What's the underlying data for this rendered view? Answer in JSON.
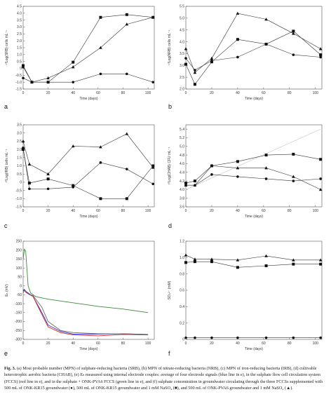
{
  "chart_data": [
    {
      "id": "a",
      "type": "line",
      "panel_label": "a",
      "xlabel": "Time (days)",
      "ylabel": "¹⁰Log(SRB) cells mL⁻¹",
      "xlim": [
        0,
        105
      ],
      "ylim": [
        -1.5,
        4.5
      ],
      "xticks": [
        "0",
        "20",
        "40",
        "60",
        "80",
        "100"
      ],
      "yticks": [
        "-1.5",
        "-1.0",
        "-0.5",
        "0",
        "0.5",
        "1.0",
        "1.5",
        "2.0",
        "2.5",
        "3.0",
        "3.5",
        "4.0",
        "4.5"
      ],
      "series": [
        {
          "marker": "circle",
          "x": [
            0,
            7,
            20,
            40,
            62,
            83,
            104
          ],
          "y": [
            -0.7,
            -1.0,
            -1.0,
            -1.0,
            -0.4,
            -0.4,
            -1.0
          ]
        },
        {
          "marker": "square",
          "x": [
            0,
            7,
            20,
            40,
            62,
            83,
            104
          ],
          "y": [
            0.2,
            -1.0,
            -1.0,
            0.45,
            3.7,
            3.9,
            3.7
          ]
        },
        {
          "marker": "triangle",
          "x": [
            0,
            7,
            20,
            40,
            62,
            83,
            104
          ],
          "y": [
            0.1,
            -1.0,
            -0.7,
            0.1,
            1.5,
            3.2,
            3.7
          ]
        }
      ]
    },
    {
      "id": "b",
      "type": "line",
      "panel_label": "b",
      "xlabel": "Time (days)",
      "ylabel": "¹⁰Log(NRB) cells mL⁻¹",
      "xlim": [
        0,
        105
      ],
      "ylim": [
        2.0,
        5.5
      ],
      "xticks": [
        "0",
        "20",
        "40",
        "60",
        "80",
        "100"
      ],
      "yticks": [
        "2.0",
        "2.5",
        "3.0",
        "3.5",
        "4.0",
        "4.5",
        "5.0",
        "5.5"
      ],
      "series": [
        {
          "marker": "circle",
          "x": [
            0,
            7,
            20,
            40,
            62,
            83,
            104
          ],
          "y": [
            3.3,
            2.8,
            3.2,
            3.35,
            3.9,
            3.45,
            3.35
          ]
        },
        {
          "marker": "square",
          "x": [
            0,
            7,
            20,
            40,
            62,
            83,
            104
          ],
          "y": [
            3.05,
            2.2,
            3.15,
            4.1,
            3.9,
            4.45,
            3.45
          ]
        },
        {
          "marker": "triangle",
          "x": [
            0,
            7,
            20,
            40,
            62,
            83,
            104
          ],
          "y": [
            3.7,
            2.7,
            3.3,
            5.2,
            4.95,
            4.35,
            3.7
          ]
        }
      ]
    },
    {
      "id": "c",
      "type": "line",
      "panel_label": "c",
      "xlabel": "Time (days)",
      "ylabel": "¹⁰Log(IRB) cells mL⁻¹",
      "xlim": [
        0,
        105
      ],
      "ylim": [
        -1.5,
        3.5
      ],
      "xticks": [
        "0",
        "20",
        "40",
        "60",
        "80",
        "100"
      ],
      "yticks": [
        "-1.5",
        "-1.0",
        "-0.5",
        "0",
        "0.5",
        "1.0",
        "1.5",
        "2.0",
        "2.5",
        "3.0",
        "3.5"
      ],
      "series": [
        {
          "marker": "circle",
          "x": [
            0,
            5,
            20,
            40,
            62,
            83,
            104
          ],
          "y": [
            2.1,
            -0.4,
            -0.4,
            -0.3,
            1.2,
            0.8,
            -0.1
          ]
        },
        {
          "marker": "square",
          "x": [
            0,
            5,
            20,
            40,
            62,
            83,
            104
          ],
          "y": [
            2.0,
            -0.05,
            0.2,
            -0.2,
            -1.0,
            -1.0,
            1.0
          ]
        },
        {
          "marker": "triangle",
          "x": [
            0,
            5,
            20,
            40,
            62,
            83,
            104
          ],
          "y": [
            2.5,
            1.1,
            0.5,
            2.2,
            2.15,
            2.95,
            0.9
          ]
        }
      ]
    },
    {
      "id": "d",
      "type": "line",
      "panel_label": "d",
      "xlabel": "Time (days)",
      "ylabel": "¹⁰Log(CHAB) CFU mL⁻¹",
      "xlim": [
        0,
        105
      ],
      "ylim": [
        3.6,
        5.5
      ],
      "xticks": [
        "0",
        "20",
        "40",
        "60",
        "80",
        "100"
      ],
      "yticks": [
        "3.6",
        "3.8",
        "4.0",
        "4.2",
        "4.4",
        "4.6",
        "4.8",
        "5.0",
        "5.2",
        "5.4"
      ],
      "series": [
        {
          "marker": "circle",
          "x": [
            0,
            7,
            20,
            40,
            62,
            83,
            104
          ],
          "y": [
            4.1,
            4.1,
            4.35,
            4.3,
            4.25,
            4.2,
            4.25
          ]
        },
        {
          "marker": "square",
          "x": [
            0,
            7,
            20,
            40,
            62,
            83,
            104
          ],
          "y": [
            4.15,
            4.2,
            4.55,
            4.65,
            4.8,
            4.82,
            4.7
          ]
        },
        {
          "marker": "triangle",
          "x": [
            0,
            7,
            20,
            40,
            62,
            83,
            104
          ],
          "y": [
            4.1,
            4.1,
            4.55,
            4.5,
            4.5,
            4.3,
            4.0
          ]
        }
      ],
      "trend_line": {
        "color": "#cccccc",
        "x": [
          0,
          104
        ],
        "y": [
          4.0,
          5.4
        ]
      }
    },
    {
      "id": "e",
      "type": "line",
      "panel_label": "e",
      "xlabel": "Time (days)",
      "ylabel": "Eₕ (mV)",
      "xlim": [
        0,
        105
      ],
      "ylim": [
        -300,
        250
      ],
      "xticks": [
        "0",
        "20",
        "40",
        "60",
        "80",
        "100"
      ],
      "yticks": [
        "-300",
        "-250",
        "-200",
        "-150",
        "-100",
        "-50",
        "0",
        "50",
        "100",
        "150",
        "200",
        "250"
      ],
      "series": [
        {
          "color": "#3c8a3c",
          "x": [
            0,
            1,
            2,
            4,
            6,
            10,
            20,
            40,
            60,
            80,
            100
          ],
          "y": [
            150,
            205,
            195,
            0,
            -40,
            -60,
            -75,
            -95,
            -115,
            -130,
            -150
          ]
        },
        {
          "color": "#2a2ad0",
          "x": [
            0,
            1,
            2,
            4,
            8,
            15,
            20,
            30,
            40,
            60,
            80,
            100
          ],
          "y": [
            -30,
            -20,
            -30,
            -40,
            -60,
            -150,
            -220,
            -255,
            -270,
            -270,
            -268,
            -272
          ]
        },
        {
          "color": "#cc2222",
          "x": [
            0,
            1,
            2,
            4,
            8,
            15,
            20,
            30,
            40,
            60,
            80,
            100
          ],
          "y": [
            -20,
            -25,
            -35,
            -45,
            -60,
            -160,
            -230,
            -262,
            -275,
            -280,
            -272,
            -275
          ]
        },
        {
          "color": "#6a6a6a",
          "x": [
            0,
            1,
            2,
            4,
            8,
            15,
            20,
            30,
            40,
            60,
            80,
            100
          ],
          "y": [
            -40,
            -25,
            -30,
            -45,
            -55,
            -120,
            -200,
            -250,
            -262,
            -268,
            -268,
            -272
          ]
        }
      ]
    },
    {
      "id": "f",
      "type": "line",
      "panel_label": "f",
      "xlabel": "Time (days)",
      "ylabel": "SO₄²⁻ (mM)",
      "xlim": [
        0,
        105
      ],
      "ylim": [
        0,
        1.2
      ],
      "xticks": [
        "0",
        "20",
        "40",
        "60",
        "80",
        "100"
      ],
      "yticks": [
        "0",
        "0.2",
        "0.4",
        "0.6",
        "0.8",
        "1.0",
        "1.2"
      ],
      "series": [
        {
          "marker": "circle",
          "x": [
            0,
            7,
            20,
            40,
            62,
            83,
            104
          ],
          "y": [
            0.02,
            0.02,
            0.02,
            0.02,
            0.02,
            0.02,
            0.02
          ]
        },
        {
          "marker": "square",
          "x": [
            0,
            7,
            20,
            40,
            62,
            83,
            104
          ],
          "y": [
            0.94,
            0.95,
            0.95,
            0.88,
            0.9,
            0.92,
            0.92
          ]
        },
        {
          "marker": "triangle",
          "x": [
            0,
            7,
            20,
            40,
            62,
            83,
            104
          ],
          "y": [
            1.03,
            0.98,
            0.98,
            0.97,
            1.02,
            0.97,
            0.97
          ]
        }
      ]
    }
  ],
  "caption": {
    "fig": "Fig. 3.",
    "text": "(a) Most probable number (MPN) of sulphate-reducing bacteria (SRB), (b) MPN of nitrate-reducing bacteria (NRB), (c) MPN of iron-reducing bacteria (IRB), (d) cultivable heterotrophic aerobic bacteria (CHAB), (e) Eₕ measured using internal electrode couples: average of four electrode signals (blue line in e), in the sulphate flow cell circulation system (FCCS) (red line in e), and in the sulphate + ONK-PVA6 FCCS (green line in e), and (f) sulphate concentration in groundwater circulating through the three FCCSs supplemented with 500 mL of ONK-KR15 groundwater (●), 500 mL of ONK-KR15 groundwater and 1 mM NaSO₄ (■), and 500 mL of ONK-PVA6 groundwater and 1 mM NaSO₄ (▲)."
  }
}
